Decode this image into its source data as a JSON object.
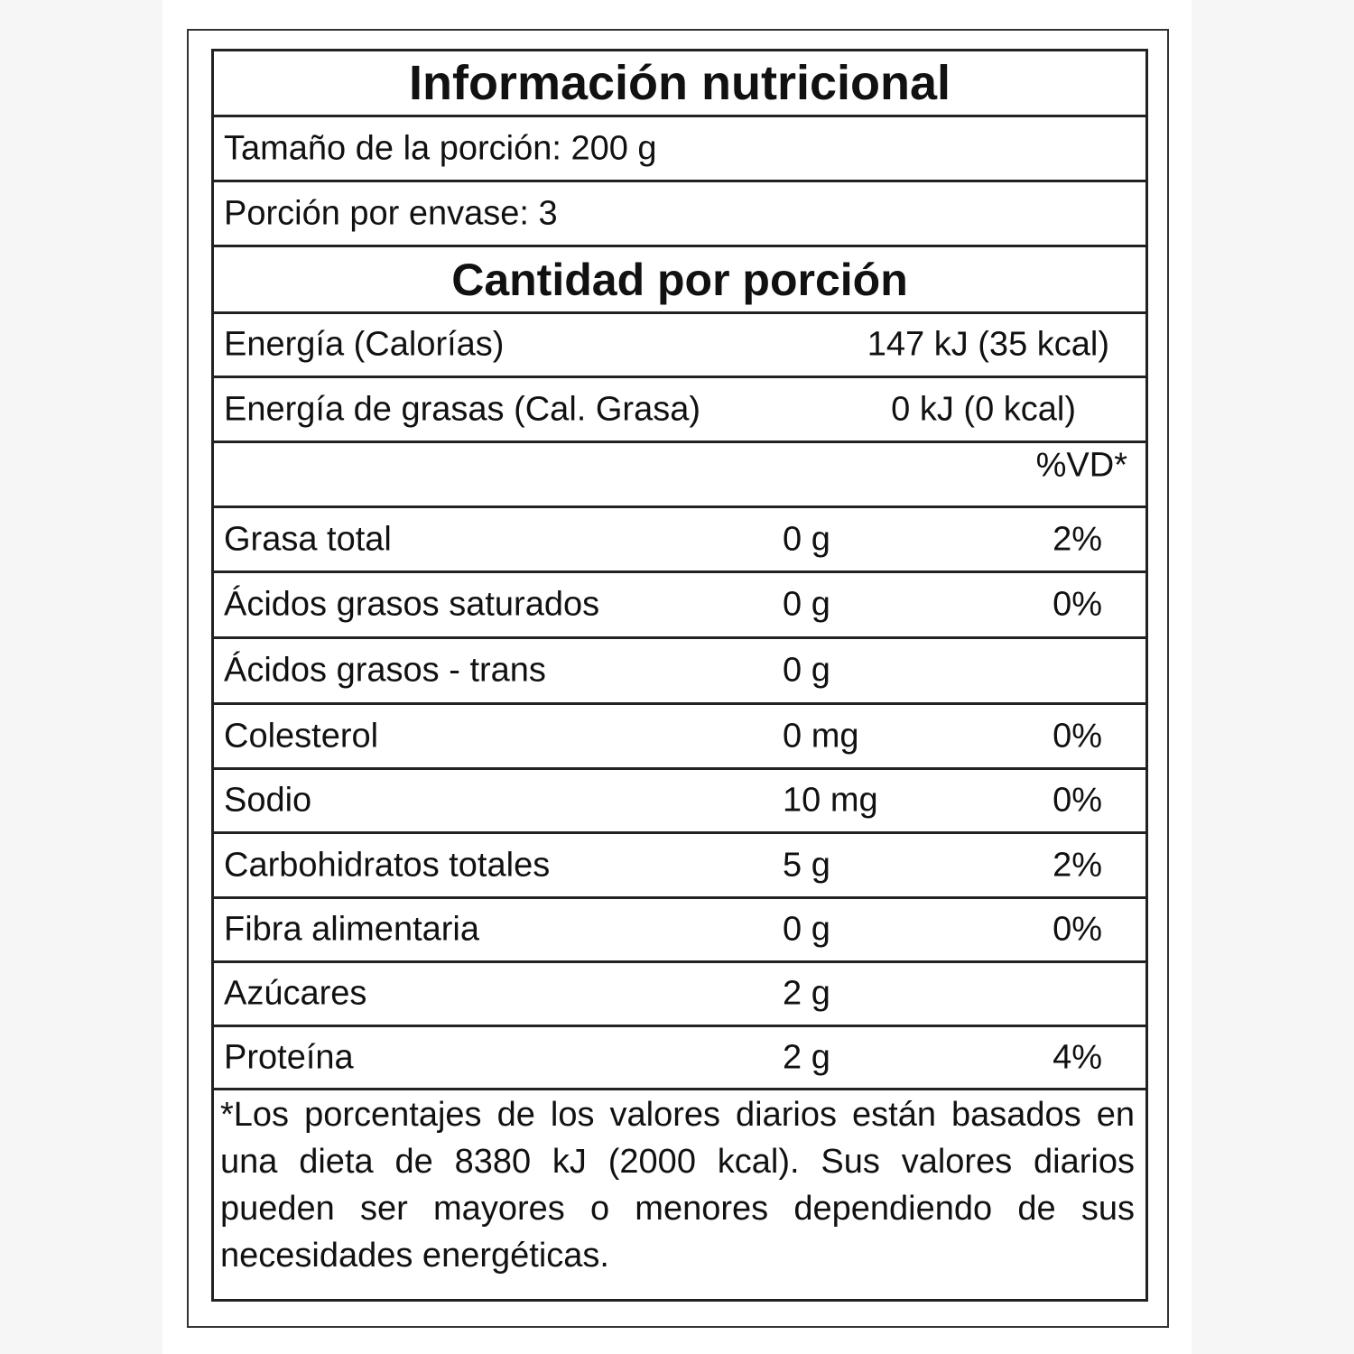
{
  "title": "Información nutricional",
  "serving_size": "Tamaño de la porción: 200 g",
  "servings_per_container": "Porción por envase: 3",
  "amount_header": "Cantidad por porción",
  "energy": {
    "label": "Energía (Calorías)",
    "value": "147 kJ (35 kcal)"
  },
  "fat_energy": {
    "label": "Energía de grasas (Cal. Grasa)",
    "value": "0 kJ (0 kcal)"
  },
  "dv_header": "%VD*",
  "nutrients": [
    {
      "name": "Grasa total",
      "amount": "0 g",
      "dv": "2%"
    },
    {
      "name": "Ácidos grasos saturados",
      "amount": "0 g",
      "dv": "0%"
    },
    {
      "name": "Ácidos grasos - trans",
      "amount": "0 g",
      "dv": ""
    },
    {
      "name": "Colesterol",
      "amount": "0 mg",
      "dv": "0%"
    },
    {
      "name": "Sodio",
      "amount": "10 mg",
      "dv": "0%"
    },
    {
      "name": "Carbohidratos totales",
      "amount": "5 g",
      "dv": "2%"
    },
    {
      "name": "Fibra alimentaria",
      "amount": "0 g",
      "dv": "0%"
    },
    {
      "name": "Azúcares",
      "amount": "2 g",
      "dv": ""
    },
    {
      "name": "Proteína",
      "amount": "2 g",
      "dv": "4%"
    }
  ],
  "footnote": "*Los porcentajes de los valores diarios están basados en una dieta de 8380 kJ (2000 kcal). Sus valores diarios pueden ser mayores o menores dependiendo de sus necesidades energéticas."
}
